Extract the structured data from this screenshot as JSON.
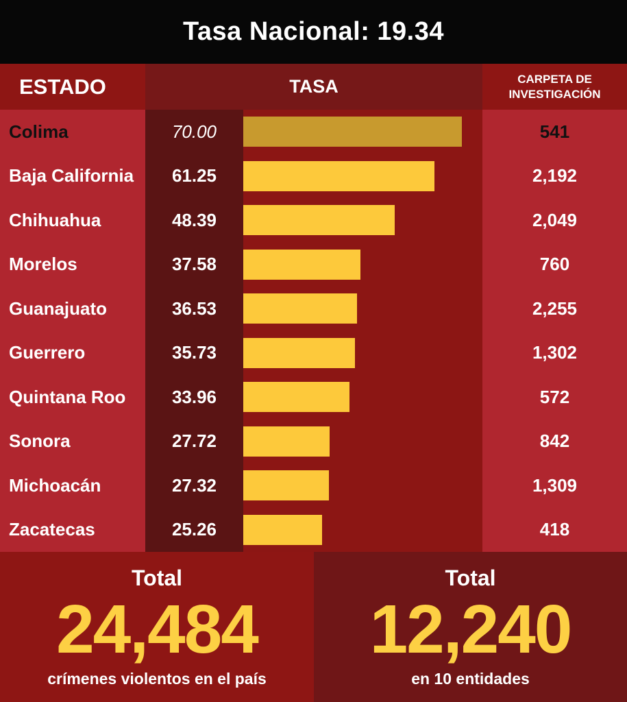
{
  "header": {
    "title": "Tasa Nacional: 19.34"
  },
  "columns": {
    "estado": "ESTADO",
    "tasa": "TASA",
    "carpeta_line1": "CARPETA DE",
    "carpeta_line2": "INVESTIGACIÓN"
  },
  "chart_data": {
    "type": "bar",
    "orientation": "horizontal",
    "title": "Tasa Nacional: 19.34",
    "categories": [
      "Colima",
      "Baja California",
      "Chihuahua",
      "Morelos",
      "Guanajuato",
      "Guerrero",
      "Quintana Roo",
      "Sonora",
      "Michoacán",
      "Zacatecas"
    ],
    "series": [
      {
        "name": "TASA",
        "values": [
          70.0,
          61.25,
          48.39,
          37.58,
          36.53,
          35.73,
          33.96,
          27.72,
          27.32,
          25.26
        ]
      }
    ],
    "value_labels": [
      "70.00",
      "61.25",
      "48.39",
      "37.58",
      "36.53",
      "35.73",
      "33.96",
      "27.72",
      "27.32",
      "25.26"
    ],
    "carpeta_de_investigacion": [
      "541",
      "2,192",
      "2,049",
      "760",
      "2,255",
      "1,302",
      "572",
      "842",
      "1,309",
      "418"
    ],
    "highlight_index": 0,
    "bar_color": "#fdc93b",
    "highlight_color": "#c89a2e"
  },
  "footer": {
    "left": {
      "label": "Total",
      "value": "24,484",
      "sub": "crímenes violentos en el país"
    },
    "right": {
      "label": "Total",
      "value": "12,240",
      "sub": "en 10 entidades"
    }
  }
}
